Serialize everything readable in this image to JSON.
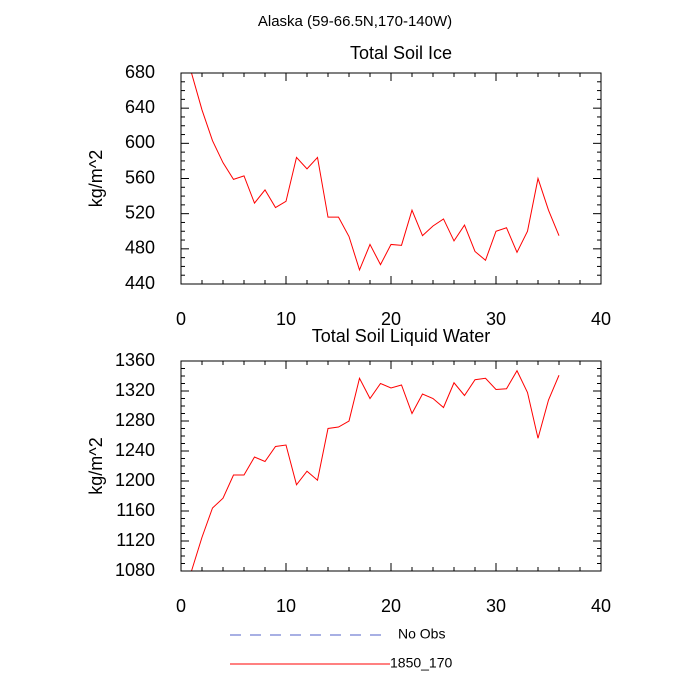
{
  "title": "Alaska (59-66.5N,170-140W)",
  "legend": [
    {
      "name": "No Obs",
      "color": "#5060c8",
      "dashed": true
    },
    {
      "name": "1850_170",
      "color": "#ff0000",
      "dashed": false
    }
  ],
  "chart_data": [
    {
      "type": "line",
      "title": "Total Soil Ice",
      "y_label": "kg/m^2",
      "x": [
        1,
        2,
        3,
        4,
        5,
        6,
        7,
        8,
        9,
        10,
        11,
        12,
        13,
        14,
        15,
        16,
        17,
        18,
        19,
        20,
        21,
        22,
        23,
        24,
        25,
        26,
        27,
        28,
        29,
        30,
        31,
        32,
        33,
        34,
        35,
        36
      ],
      "xlim": [
        0,
        40
      ],
      "xticks": [
        0,
        10,
        20,
        30,
        40
      ],
      "ylim": [
        440,
        680
      ],
      "yticks": [
        440,
        480,
        520,
        560,
        600,
        640,
        680
      ],
      "series": [
        {
          "color": "#ff0000",
          "values": [
            680,
            638,
            603,
            578,
            559,
            563,
            532,
            547,
            527,
            534,
            584,
            571,
            584,
            516,
            516,
            494,
            456,
            485,
            462,
            485,
            484,
            524,
            495,
            506,
            514,
            489,
            507,
            477,
            467,
            500,
            504,
            476,
            500,
            560,
            524,
            495
          ]
        }
      ]
    },
    {
      "type": "line",
      "title": "Total Soil Liquid Water",
      "y_label": "kg/m^2",
      "x": [
        1,
        2,
        3,
        4,
        5,
        6,
        7,
        8,
        9,
        10,
        11,
        12,
        13,
        14,
        15,
        16,
        17,
        18,
        19,
        20,
        21,
        22,
        23,
        24,
        25,
        26,
        27,
        28,
        29,
        30,
        31,
        32,
        33,
        34,
        35,
        36
      ],
      "xlim": [
        0,
        40
      ],
      "xticks": [
        0,
        10,
        20,
        30,
        40
      ],
      "ylim": [
        1080,
        1360
      ],
      "yticks": [
        1080,
        1120,
        1160,
        1200,
        1240,
        1280,
        1320,
        1360
      ],
      "series": [
        {
          "color": "#ff0000",
          "values": [
            1080,
            1125,
            1164,
            1177,
            1208,
            1208,
            1232,
            1226,
            1246,
            1248,
            1195,
            1213,
            1201,
            1270,
            1272,
            1280,
            1337,
            1310,
            1330,
            1324,
            1328,
            1290,
            1316,
            1310,
            1298,
            1331,
            1314,
            1335,
            1337,
            1322,
            1323,
            1347,
            1318,
            1257,
            1308,
            1341
          ]
        }
      ]
    }
  ]
}
